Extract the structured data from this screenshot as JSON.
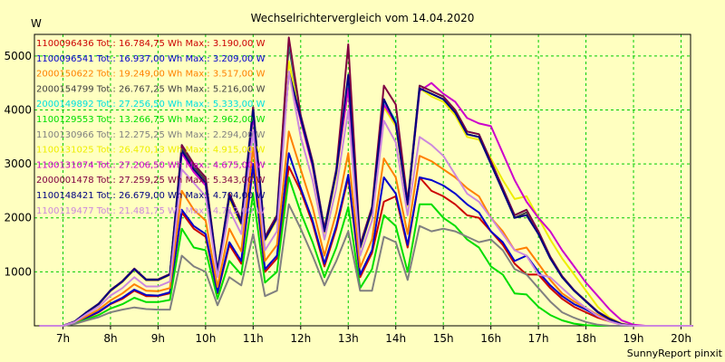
{
  "chart_data": {
    "type": "line",
    "title": "Wechselrichtervergleich vom 14.04.2020",
    "ylabel": "W",
    "footer": "SunnyReport pinxit",
    "ylim": [
      0,
      5400
    ],
    "y_ticks": [
      1000,
      2000,
      3000,
      4000,
      5000
    ],
    "x_ticks": [
      "7h",
      "8h",
      "9h",
      "10h",
      "11h",
      "12h",
      "13h",
      "14h",
      "15h",
      "16h",
      "17h",
      "18h",
      "19h",
      "20h"
    ],
    "xlim": [
      6.4,
      20.2
    ],
    "grid": true,
    "legend_position": "top-left",
    "x": [
      6.5,
      6.75,
      7.0,
      7.25,
      7.5,
      7.75,
      8.0,
      8.25,
      8.5,
      8.75,
      9.0,
      9.25,
      9.5,
      9.75,
      10.0,
      10.25,
      10.5,
      10.75,
      11.0,
      11.25,
      11.5,
      11.75,
      12.0,
      12.25,
      12.5,
      12.75,
      13.0,
      13.25,
      13.5,
      13.75,
      14.0,
      14.25,
      14.5,
      14.75,
      15.0,
      15.25,
      15.5,
      15.75,
      16.0,
      16.25,
      16.5,
      16.75,
      17.0,
      17.25,
      17.5,
      17.75,
      18.0,
      18.25,
      18.5,
      18.75,
      19.0,
      19.25,
      19.5,
      19.75,
      20.0,
      20.25
    ],
    "series": [
      {
        "label": "1100096436 Tot.: 16.784,75 Wh Max.: 3.190,00 W",
        "color": "#cc0000",
        "values": [
          0,
          0,
          0,
          50,
          150,
          250,
          400,
          500,
          650,
          550,
          550,
          600,
          2100,
          1800,
          1650,
          600,
          1500,
          1150,
          2950,
          1000,
          1250,
          2950,
          2500,
          1900,
          1100,
          1800,
          2750,
          900,
          1350,
          2300,
          2400,
          1450,
          2750,
          2500,
          2400,
          2250,
          2050,
          2000,
          1750,
          1500,
          1150,
          950,
          950,
          700,
          500,
          350,
          250,
          150,
          80,
          20,
          0,
          0,
          0,
          0,
          0,
          0
        ]
      },
      {
        "label": "1100096541 Tot.: 16.937,00 Wh Max.: 3.209,00 W",
        "color": "#0000cc",
        "values": [
          0,
          0,
          0,
          55,
          160,
          260,
          410,
          520,
          670,
          570,
          560,
          620,
          2150,
          1850,
          1700,
          620,
          1550,
          1200,
          3000,
          1050,
          1300,
          3200,
          2550,
          1950,
          1150,
          1850,
          2800,
          950,
          1400,
          2750,
          2450,
          1500,
          2750,
          2700,
          2600,
          2450,
          2250,
          2100,
          1750,
          1550,
          1200,
          1300,
          1000,
          750,
          550,
          400,
          300,
          180,
          100,
          30,
          0,
          0,
          0,
          0,
          0,
          0
        ]
      },
      {
        "label": "2000150622 Tot.: 19.249,00 Wh Max.: 3.517,00 W",
        "color": "#ff8000",
        "values": [
          0,
          0,
          0,
          60,
          180,
          300,
          470,
          600,
          770,
          650,
          640,
          700,
          2500,
          2150,
          1950,
          720,
          1800,
          1380,
          3300,
          1200,
          1500,
          3600,
          2900,
          2200,
          1300,
          2100,
          3200,
          1080,
          1600,
          3100,
          2750,
          1700,
          3150,
          3050,
          2900,
          2750,
          2550,
          2400,
          2000,
          1750,
          1400,
          1450,
          1150,
          850,
          600,
          450,
          330,
          200,
          110,
          30,
          0,
          0,
          0,
          0,
          0,
          0
        ]
      },
      {
        "label": "2000154799 Tot.: 26.767,25 Wh Max.: 5.216,00 W",
        "color": "#404040",
        "values": [
          0,
          0,
          0,
          80,
          250,
          400,
          650,
          820,
          1050,
          850,
          850,
          950,
          3300,
          2950,
          2700,
          1000,
          2400,
          1900,
          4000,
          1600,
          2000,
          5200,
          3850,
          3000,
          1750,
          2850,
          4450,
          1450,
          2150,
          4100,
          3750,
          2250,
          4400,
          4300,
          4200,
          3950,
          3550,
          3500,
          3000,
          2500,
          2000,
          2100,
          1700,
          1250,
          900,
          650,
          450,
          250,
          120,
          30,
          0,
          0,
          0,
          0,
          0,
          0
        ]
      },
      {
        "label": "2000149892 Tot.: 27.256,50 Wh Max.: 5.333,00 W",
        "color": "#00e0e0",
        "values": [
          0,
          0,
          0,
          80,
          255,
          410,
          660,
          830,
          1060,
          860,
          860,
          960,
          3350,
          3000,
          2750,
          1020,
          2450,
          1950,
          4050,
          1650,
          2050,
          5300,
          3900,
          3050,
          1800,
          2900,
          4500,
          1500,
          2200,
          4150,
          3800,
          2300,
          4450,
          4350,
          4250,
          4000,
          3600,
          3550,
          3050,
          2550,
          2050,
          2150,
          1750,
          1280,
          920,
          660,
          460,
          260,
          130,
          35,
          0,
          0,
          0,
          0,
          0,
          0
        ]
      },
      {
        "label": "1100129553 Tot.: 13.266,75 Wh Max.: 2.962,00 W",
        "color": "#00dd00",
        "values": [
          0,
          0,
          0,
          40,
          120,
          200,
          320,
          400,
          520,
          440,
          440,
          480,
          1800,
          1450,
          1400,
          500,
          1200,
          950,
          2450,
          800,
          1000,
          2750,
          2100,
          1550,
          900,
          1450,
          2200,
          700,
          1050,
          2050,
          1850,
          1000,
          2250,
          2250,
          2000,
          1850,
          1600,
          1450,
          1100,
          950,
          600,
          580,
          350,
          200,
          100,
          40,
          10,
          0,
          0,
          0,
          0,
          0,
          0,
          0,
          0,
          0
        ]
      },
      {
        "label": "1100130966 Tot.: 12.275,25 Wh Max.: 2.294,00 W",
        "color": "#808080",
        "values": [
          0,
          0,
          0,
          35,
          100,
          160,
          250,
          300,
          340,
          310,
          300,
          300,
          1300,
          1100,
          1000,
          380,
          900,
          750,
          1700,
          550,
          650,
          2250,
          1800,
          1300,
          750,
          1200,
          1750,
          650,
          650,
          1650,
          1550,
          850,
          1850,
          1750,
          1800,
          1750,
          1650,
          1550,
          1600,
          1400,
          1050,
          950,
          700,
          450,
          250,
          150,
          70,
          20,
          0,
          0,
          0,
          0,
          0,
          0,
          0,
          0
        ]
      },
      {
        "label": "1100131025 Tot.: 26.470,13 Wh Max.: 4.915,00 W",
        "color": "#eeee00",
        "values": [
          0,
          0,
          0,
          80,
          245,
          395,
          640,
          810,
          1040,
          840,
          840,
          940,
          3250,
          2900,
          2650,
          990,
          2350,
          1870,
          3950,
          1580,
          1970,
          4900,
          3800,
          2950,
          1720,
          2800,
          4400,
          1430,
          2120,
          4050,
          3700,
          2220,
          4400,
          4250,
          4150,
          3900,
          3500,
          3450,
          3100,
          2700,
          2350,
          2400,
          2000,
          1600,
          1250,
          950,
          650,
          350,
          150,
          40,
          0,
          0,
          0,
          0,
          0,
          0
        ]
      },
      {
        "label": "1100131074 Tot.: 27.206,50 Wh Max.: 4.675,00 W",
        "color": "#cc00cc",
        "values": [
          0,
          0,
          0,
          80,
          250,
          400,
          650,
          820,
          1050,
          850,
          850,
          950,
          3200,
          2850,
          2600,
          1000,
          2400,
          1900,
          3900,
          1600,
          2000,
          4700,
          3800,
          2950,
          1750,
          2850,
          4400,
          1450,
          2150,
          4100,
          3750,
          2250,
          4350,
          4500,
          4300,
          4150,
          3850,
          3750,
          3700,
          3200,
          2700,
          2300,
          2000,
          1750,
          1400,
          1100,
          800,
          550,
          300,
          100,
          20,
          0,
          0,
          0,
          0,
          0
        ]
      },
      {
        "label": "2000001478 Tot.: 27.259,25 Wh Max.: 5.343,00 W",
        "color": "#800040",
        "values": [
          0,
          0,
          0,
          80,
          255,
          410,
          660,
          830,
          1060,
          860,
          860,
          960,
          3350,
          3000,
          2750,
          1020,
          2450,
          1950,
          4050,
          1650,
          2050,
          5343,
          3900,
          3050,
          1800,
          2900,
          5216,
          1500,
          2200,
          4450,
          4100,
          2300,
          4450,
          4350,
          4250,
          4000,
          3600,
          3550,
          3050,
          2550,
          2050,
          2150,
          1750,
          1280,
          920,
          660,
          460,
          260,
          130,
          35,
          0,
          0,
          0,
          0,
          0,
          0
        ]
      },
      {
        "label": "1100148421 Tot.: 26.679,00 Wh Max.: 4.704,00 W",
        "color": "#000080",
        "values": [
          0,
          0,
          0,
          80,
          250,
          400,
          650,
          820,
          1050,
          850,
          850,
          950,
          3250,
          2900,
          2650,
          1000,
          2400,
          1900,
          4000,
          1600,
          2000,
          4704,
          3850,
          3000,
          1750,
          2850,
          4650,
          1450,
          2150,
          4200,
          3750,
          2250,
          4400,
          4300,
          4200,
          3950,
          3550,
          3500,
          3000,
          2500,
          2000,
          2050,
          1700,
          1250,
          900,
          650,
          450,
          250,
          120,
          30,
          0,
          0,
          0,
          0,
          0,
          0
        ]
      },
      {
        "label": "1100119477 Tot.: 21.481,75 Wh Max.: 4.712,00 W",
        "color": "#cc88dd",
        "values": [
          0,
          0,
          0,
          70,
          220,
          350,
          560,
          700,
          900,
          730,
          730,
          820,
          2900,
          2650,
          2400,
          900,
          2150,
          1700,
          3600,
          1400,
          1750,
          4712,
          3500,
          2700,
          1600,
          2550,
          4000,
          1300,
          1950,
          3800,
          3400,
          2050,
          3500,
          3350,
          3150,
          2800,
          2450,
          2300,
          2000,
          1700,
          1400,
          1300,
          950,
          900,
          700,
          500,
          330,
          180,
          80,
          20,
          0,
          0,
          0,
          0,
          0,
          0
        ]
      }
    ]
  }
}
